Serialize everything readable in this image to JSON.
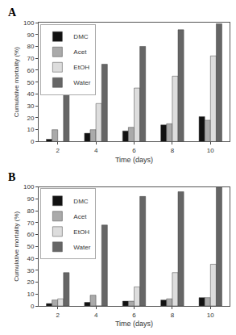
{
  "chart_data": [
    {
      "type": "bar",
      "title": "A",
      "categories": [
        "2",
        "4",
        "6",
        "8",
        "10"
      ],
      "series": [
        {
          "name": "DMC",
          "color": "#111111",
          "values": [
            2,
            7,
            9,
            14,
            21
          ]
        },
        {
          "name": "Acet",
          "color": "#aaaaaa",
          "values": [
            10,
            10,
            12,
            15,
            18
          ]
        },
        {
          "name": "EtOH",
          "color": "#dddddd",
          "values": [
            0,
            32,
            45,
            55,
            72
          ]
        },
        {
          "name": "Water",
          "color": "#666666",
          "values": [
            42,
            65,
            80,
            94,
            99
          ]
        }
      ],
      "xlabel": "Time (days)",
      "ylabel": "Cumulative mortality (%)",
      "ylim": [
        0,
        100
      ],
      "yticks": [
        0,
        10,
        20,
        30,
        40,
        50,
        60,
        70,
        80,
        90,
        100
      ],
      "grid": false,
      "legend": "upper left"
    },
    {
      "type": "bar",
      "title": "B",
      "categories": [
        "2",
        "4",
        "6",
        "8",
        "10"
      ],
      "series": [
        {
          "name": "DMC",
          "color": "#111111",
          "values": [
            2,
            3,
            4,
            5,
            7
          ]
        },
        {
          "name": "Acet",
          "color": "#aaaaaa",
          "values": [
            5,
            9,
            4,
            6,
            7
          ]
        },
        {
          "name": "EtOH",
          "color": "#dddddd",
          "values": [
            6,
            0,
            16,
            28,
            35
          ]
        },
        {
          "name": "Water",
          "color": "#666666",
          "values": [
            28,
            68,
            92,
            96,
            100
          ]
        }
      ],
      "xlabel": "Time (days)",
      "ylabel": "Cumulative mortality (%)",
      "ylim": [
        0,
        100
      ],
      "yticks": [
        0,
        10,
        20,
        30,
        40,
        50,
        60,
        70,
        80,
        90,
        100
      ],
      "grid": false,
      "legend": "upper left"
    }
  ]
}
